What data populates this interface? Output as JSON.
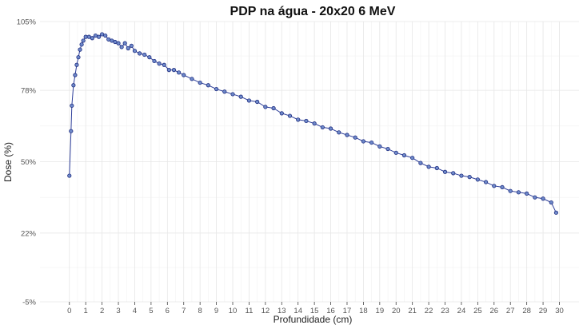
{
  "chart_data": {
    "type": "line",
    "title": "PDP na água - 20x20 6 MeV",
    "xlabel": "Profundidade (cm)",
    "ylabel": "Dose (%)",
    "xlim": [
      -1.8,
      31.2
    ],
    "ylim": [
      -5,
      105
    ],
    "x_ticks": [
      0,
      1,
      2,
      3,
      4,
      5,
      6,
      7,
      8,
      9,
      10,
      11,
      12,
      13,
      14,
      15,
      16,
      17,
      18,
      19,
      20,
      21,
      22,
      23,
      24,
      25,
      26,
      27,
      28,
      29,
      30
    ],
    "y_ticks": [
      -5,
      22,
      50,
      78,
      105
    ],
    "y_tick_labels": [
      "-5%",
      "22%",
      "50%",
      "78%",
      "105%"
    ],
    "grid": true,
    "legend": "none",
    "series": [
      {
        "color": "#2e3f9a",
        "marker_fill": "#6e89c9",
        "x": [
          0.0,
          0.1,
          0.15,
          0.25,
          0.35,
          0.45,
          0.55,
          0.65,
          0.75,
          0.85,
          1.0,
          1.2,
          1.4,
          1.6,
          1.8,
          2.0,
          2.2,
          2.4,
          2.6,
          2.8,
          3.0,
          3.2,
          3.4,
          3.6,
          3.8,
          4.0,
          4.3,
          4.6,
          4.9,
          5.2,
          5.5,
          5.8,
          6.1,
          6.4,
          6.7,
          7.0,
          7.5,
          8.0,
          8.5,
          9.0,
          9.5,
          10.0,
          10.5,
          11.0,
          11.5,
          12.0,
          12.5,
          13.0,
          13.5,
          14.0,
          14.5,
          15.0,
          15.5,
          16.0,
          16.5,
          17.0,
          17.5,
          18.0,
          18.5,
          19.0,
          19.5,
          20.0,
          20.5,
          21.0,
          21.5,
          22.0,
          22.5,
          23.0,
          23.5,
          24.0,
          24.5,
          25.0,
          25.5,
          26.0,
          26.5,
          27.0,
          27.5,
          28.0,
          28.5,
          29.0,
          29.5,
          29.8
        ],
        "y": [
          44.5,
          62,
          72,
          80,
          84,
          88,
          91,
          94,
          96,
          97.5,
          99,
          99,
          98.5,
          99.5,
          99,
          100,
          99.5,
          98,
          97.5,
          97,
          96.5,
          95,
          96.5,
          94.5,
          95.5,
          93.5,
          92.5,
          92,
          91,
          89.5,
          88.5,
          88,
          86,
          86,
          85,
          84,
          82.5,
          81,
          80,
          78.5,
          77.5,
          76.5,
          75.5,
          74,
          73.5,
          71.5,
          71,
          69,
          68,
          66.5,
          66,
          65,
          63.5,
          63,
          61.5,
          60.5,
          59.5,
          58,
          57.5,
          56,
          55,
          53.5,
          52.5,
          51.5,
          49.5,
          48,
          47.5,
          46,
          45.5,
          44.5,
          44,
          43,
          42,
          40.5,
          40,
          38.5,
          38,
          37.5,
          36,
          35.5,
          34,
          30
        ]
      }
    ]
  }
}
